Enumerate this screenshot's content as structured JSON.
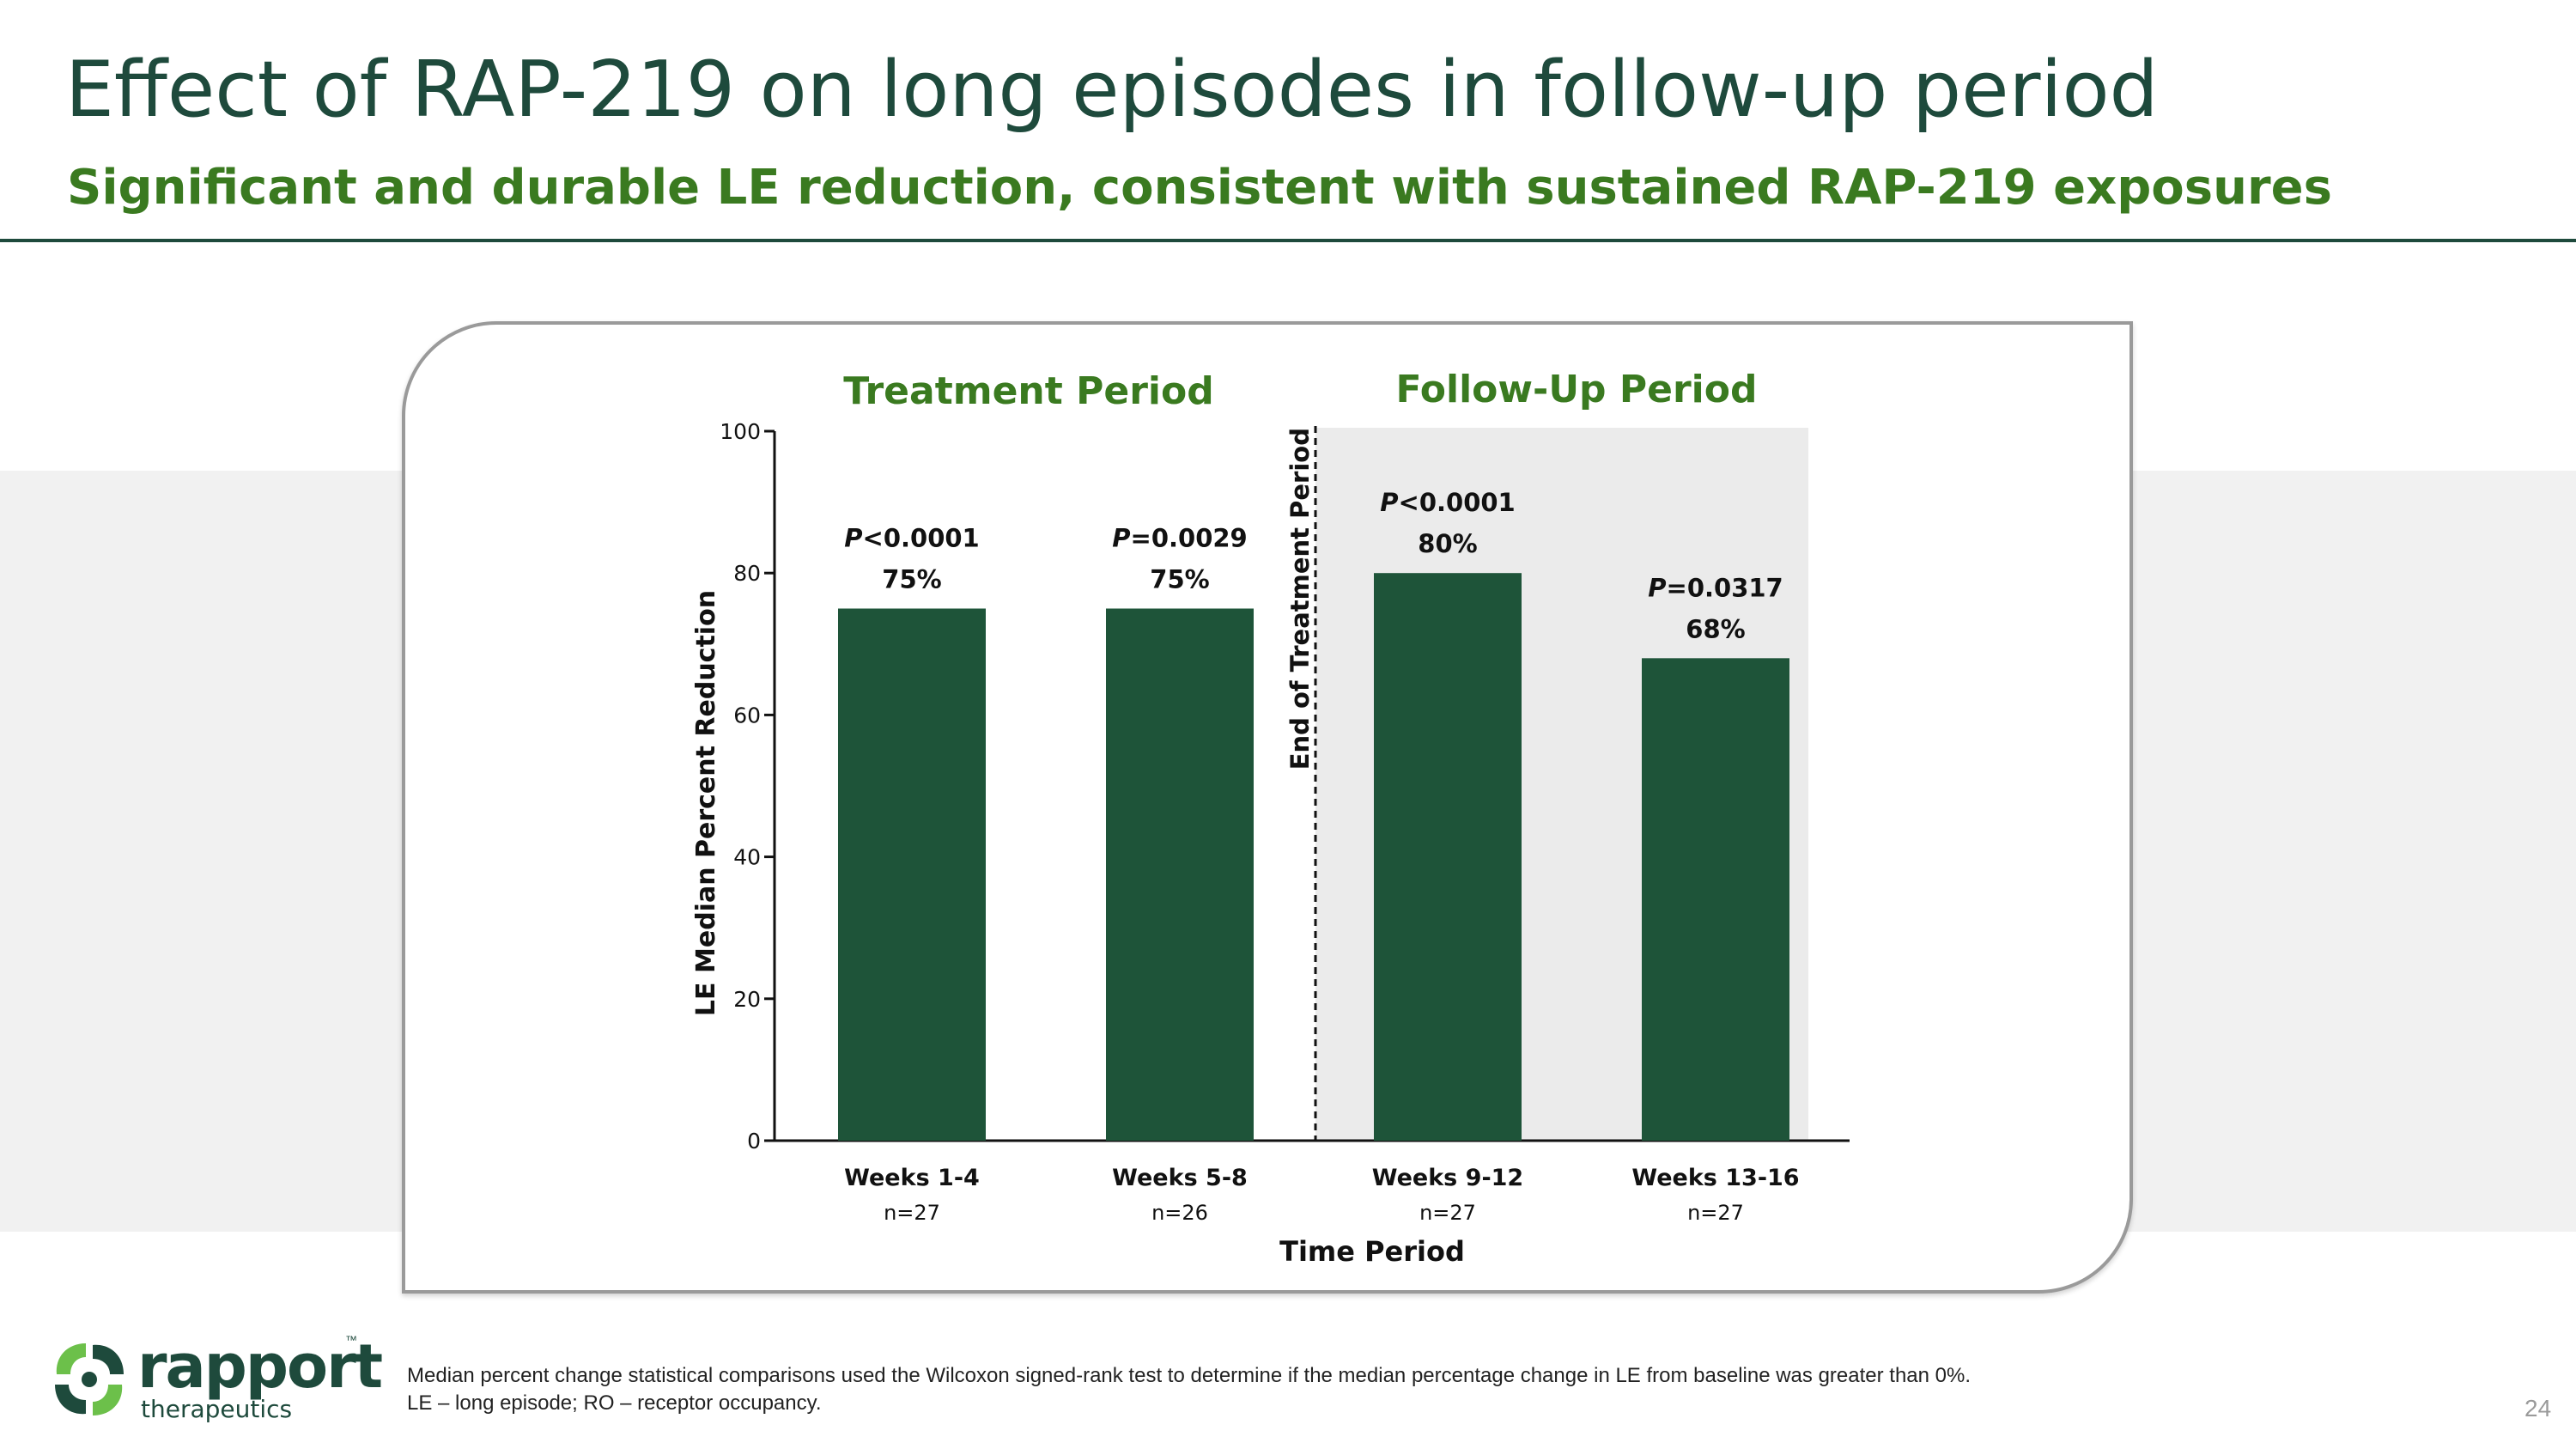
{
  "slide": {
    "title": "Effect of RAP-219 on long episodes in follow-up period",
    "subtitle": "Significant and durable LE reduction, consistent with sustained RAP-219 exposures",
    "footnote_line1": "Median percent change statistical comparisons used the Wilcoxon signed-rank test to determine if the median percentage change in LE from baseline was greater than 0%.",
    "footnote_line2": "LE – long episode; RO – receptor occupancy.",
    "page_number": "24"
  },
  "logo": {
    "word": "rapport",
    "sub": "therapeutics",
    "tm": "™"
  },
  "colors": {
    "title": "#1e4a3c",
    "subtitle": "#3a7a20",
    "bar": "#1e5439",
    "followup_shade": "#ebebeb",
    "band": "#f1f1f1",
    "logo_green": "#6cc04a"
  },
  "chart_data": {
    "type": "bar",
    "categories": [
      "Weeks 1-4",
      "Weeks 5-8",
      "Weeks 9-12",
      "Weeks 13-16"
    ],
    "n_labels": [
      "n=27",
      "n=26",
      "n=27",
      "n=27"
    ],
    "values": [
      75,
      75,
      80,
      68
    ],
    "value_labels": [
      "75%",
      "75%",
      "80%",
      "68%"
    ],
    "p_labels": [
      {
        "italic": "P",
        "rest": "<0.0001"
      },
      {
        "italic": "P",
        "rest": "=0.0029"
      },
      {
        "italic": "P",
        "rest": "<0.0001"
      },
      {
        "italic": "P",
        "rest": "=0.0317"
      }
    ],
    "xlabel": "Time Period",
    "ylabel": "LE Median Percent Reduction",
    "ylim": [
      0,
      100
    ],
    "yticks": [
      0,
      20,
      40,
      60,
      80,
      100
    ],
    "period_labels": [
      "Treatment Period",
      "Follow-Up Period"
    ],
    "divider_label": "End of Treatment Period",
    "shaded_categories": [
      2,
      3
    ],
    "grid": false
  }
}
